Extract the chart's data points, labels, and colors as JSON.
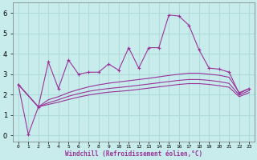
{
  "xlabel": "Windchill (Refroidissement éolien,°C)",
  "x_labels": [
    "0",
    "1",
    "2",
    "3",
    "4",
    "5",
    "6",
    "7",
    "8",
    "9",
    "10",
    "11",
    "12",
    "13",
    "14",
    "15",
    "16",
    "17",
    "18",
    "19",
    "20",
    "21",
    "22",
    "23"
  ],
  "xlim": [
    -0.5,
    23.5
  ],
  "ylim": [
    -0.3,
    6.5
  ],
  "yticks": [
    0,
    1,
    2,
    3,
    4,
    5,
    6
  ],
  "background_color": "#c8ecec",
  "grid_color": "#b0dada",
  "line_color": "#993399",
  "series1_x": [
    0,
    1,
    2,
    3,
    4,
    5,
    6,
    7,
    8,
    9,
    10,
    11,
    12,
    13,
    14,
    15,
    16,
    17,
    18,
    19,
    20,
    21,
    22,
    23
  ],
  "series1_y": [
    2.5,
    0.05,
    1.4,
    3.6,
    2.3,
    3.7,
    3.0,
    3.1,
    3.1,
    3.5,
    3.2,
    4.3,
    3.3,
    4.3,
    4.3,
    5.9,
    5.85,
    5.4,
    4.2,
    3.3,
    3.25,
    3.1,
    2.05,
    2.3
  ],
  "series2_x": [
    0,
    2,
    3,
    4,
    5,
    6,
    7,
    8,
    9,
    10,
    11,
    12,
    13,
    14,
    15,
    16,
    17,
    18,
    19,
    20,
    21,
    22,
    23
  ],
  "series2_y": [
    2.5,
    1.4,
    1.75,
    1.9,
    2.1,
    2.25,
    2.38,
    2.48,
    2.56,
    2.62,
    2.68,
    2.74,
    2.8,
    2.87,
    2.94,
    3.0,
    3.05,
    3.05,
    3.0,
    2.95,
    2.85,
    2.1,
    2.3
  ],
  "series3_x": [
    0,
    2,
    3,
    4,
    5,
    6,
    7,
    8,
    9,
    10,
    11,
    12,
    13,
    14,
    15,
    16,
    17,
    18,
    19,
    20,
    21,
    22,
    23
  ],
  "series3_y": [
    2.5,
    1.4,
    1.6,
    1.75,
    1.92,
    2.05,
    2.16,
    2.24,
    2.3,
    2.35,
    2.4,
    2.46,
    2.52,
    2.58,
    2.64,
    2.7,
    2.74,
    2.74,
    2.7,
    2.64,
    2.55,
    1.98,
    2.2
  ],
  "series4_x": [
    0,
    2,
    3,
    4,
    5,
    6,
    7,
    8,
    9,
    10,
    11,
    12,
    13,
    14,
    15,
    16,
    17,
    18,
    19,
    20,
    21,
    22,
    23
  ],
  "series4_y": [
    2.5,
    1.4,
    1.52,
    1.63,
    1.76,
    1.88,
    1.98,
    2.06,
    2.12,
    2.16,
    2.2,
    2.26,
    2.32,
    2.38,
    2.44,
    2.5,
    2.54,
    2.54,
    2.5,
    2.44,
    2.36,
    1.9,
    2.1
  ]
}
